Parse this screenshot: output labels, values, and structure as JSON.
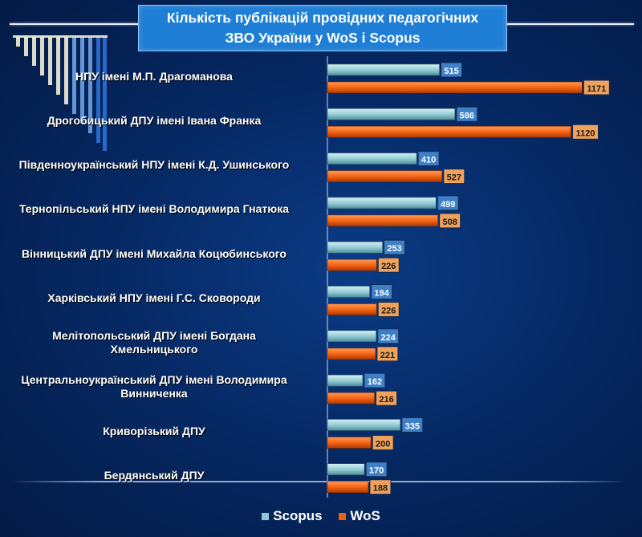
{
  "header": {
    "title_line1": "Кількість публікацій провідних педагогічних",
    "title_line2": "ЗВО України у WoS і Scopus"
  },
  "colors": {
    "scopus": "#8fc8d2",
    "wos": "#f2600f",
    "scopus_label_bg": "#3f7fc6",
    "wos_label_bg": "#f0a15a"
  },
  "chart_data": {
    "type": "bar",
    "orientation": "horizontal",
    "title": "Кількість публікацій провідних педагогічних ЗВО України у WoS і Scopus",
    "categories": [
      [
        "НПУ імені М.П. Драгоманова"
      ],
      [
        "Дрогобицький ДПУ імені Івана Франка"
      ],
      [
        "Південноукраїнський НПУ імені К.Д. Ушинського"
      ],
      [
        "Тернопільський НПУ імені Володимира Гнатюка"
      ],
      [
        "Вінницький ДПУ імені Михайла Коцюбинського"
      ],
      [
        "Харківський НПУ імені Г.С. Сковороди"
      ],
      [
        "Мелітопольський ДПУ імені Богдана",
        "Хмельницького"
      ],
      [
        "Центральноукраїнський ДПУ імені Володимира",
        "Винниченка"
      ],
      [
        "Криворізький ДПУ"
      ],
      [
        "Бердянський ДПУ"
      ]
    ],
    "series": [
      {
        "name": "Scopus",
        "values": [
          515,
          586,
          410,
          499,
          253,
          194,
          224,
          162,
          335,
          170
        ]
      },
      {
        "name": "WoS",
        "values": [
          1171,
          1120,
          527,
          508,
          226,
          226,
          221,
          216,
          200,
          188
        ]
      }
    ],
    "xlim": [
      0,
      1300
    ],
    "legend": "bottom",
    "data_labels": true,
    "grid": false
  }
}
